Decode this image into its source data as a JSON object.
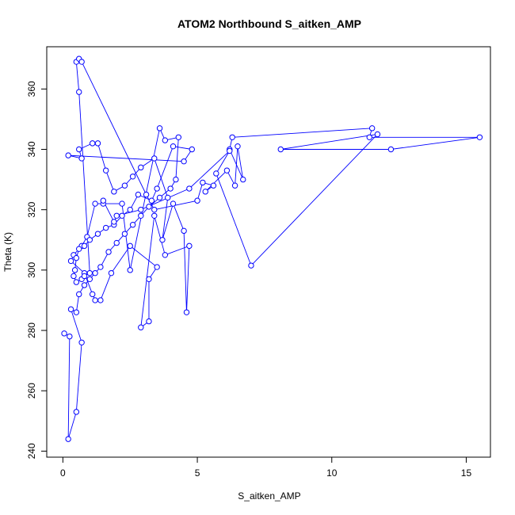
{
  "chart_data": {
    "type": "line",
    "title": "ATOM2 Northbound S_aitken_AMP",
    "xlabel": "S_aitken_AMP",
    "ylabel": "Theta (K)",
    "xlim": [
      -0.6,
      15.9
    ],
    "ylim": [
      238,
      374
    ],
    "xticks": [
      "0",
      "5",
      "10",
      "15"
    ],
    "yticks": [
      "240",
      "260",
      "280",
      "300",
      "320",
      "340",
      "360"
    ],
    "grid": false,
    "legend": "none",
    "series_color": "#0000ff",
    "marker": "open-circle",
    "series": [
      {
        "values": [
          [
            0.05,
            279.0
          ],
          [
            0.25,
            278.0
          ],
          [
            0.2,
            244.0
          ],
          [
            0.5,
            253.0
          ],
          [
            0.7,
            276.0
          ],
          [
            0.3,
            287.0
          ],
          [
            0.5,
            286.0
          ],
          [
            0.6,
            292.0
          ],
          [
            0.8,
            295.0
          ],
          [
            1.0,
            297.0
          ],
          [
            1.2,
            299.0
          ],
          [
            1.4,
            301.0
          ],
          [
            1.7,
            306.0
          ],
          [
            2.0,
            309.0
          ],
          [
            2.3,
            312.0
          ],
          [
            2.6,
            315.0
          ],
          [
            2.9,
            318.0
          ],
          [
            3.2,
            321.0
          ],
          [
            3.6,
            324.0
          ],
          [
            4.0,
            327.0
          ],
          [
            4.2,
            330.0
          ],
          [
            4.3,
            344.0
          ],
          [
            3.8,
            343.0
          ],
          [
            3.6,
            347.0
          ],
          [
            2.5,
            300.0
          ],
          [
            2.2,
            322.0
          ],
          [
            1.5,
            322.0
          ],
          [
            1.2,
            322.0
          ],
          [
            0.9,
            311.0
          ],
          [
            0.7,
            308.0
          ],
          [
            0.4,
            305.0
          ],
          [
            0.3,
            303.0
          ],
          [
            0.8,
            299.0
          ],
          [
            1.1,
            292.0
          ],
          [
            1.2,
            290.0
          ],
          [
            1.4,
            290.0
          ],
          [
            1.8,
            299.0
          ],
          [
            2.5,
            308.0
          ],
          [
            3.5,
            301.0
          ],
          [
            3.2,
            297.0
          ],
          [
            3.2,
            283.0
          ],
          [
            2.9,
            281.0
          ],
          [
            3.4,
            318.0
          ],
          [
            3.8,
            305.0
          ],
          [
            4.7,
            308.0
          ],
          [
            4.6,
            286.0
          ],
          [
            4.5,
            313.0
          ],
          [
            4.1,
            322.0
          ],
          [
            3.7,
            310.0
          ],
          [
            3.9,
            324.0
          ],
          [
            3.4,
            337.0
          ],
          [
            2.9,
            334.0
          ],
          [
            2.6,
            331.0
          ],
          [
            2.3,
            328.0
          ],
          [
            1.9,
            326.0
          ],
          [
            1.6,
            333.0
          ],
          [
            1.3,
            342.0
          ],
          [
            1.1,
            342.0
          ],
          [
            0.6,
            340.0
          ],
          [
            0.7,
            337.0
          ],
          [
            0.2,
            338.0
          ],
          [
            4.5,
            336.0
          ],
          [
            4.8,
            340.0
          ],
          [
            4.1,
            341.0
          ],
          [
            3.5,
            327.0
          ],
          [
            3.3,
            323.0
          ],
          [
            2.8,
            325.0
          ],
          [
            2.5,
            320.0
          ],
          [
            2.2,
            318.0
          ],
          [
            1.9,
            315.0
          ],
          [
            1.6,
            314.0
          ],
          [
            1.3,
            312.0
          ],
          [
            1.0,
            310.0
          ],
          [
            0.8,
            308.0
          ],
          [
            0.6,
            307.0
          ],
          [
            0.5,
            304.0
          ],
          [
            0.45,
            300.0
          ],
          [
            0.4,
            298.0
          ],
          [
            0.5,
            296.0
          ],
          [
            0.7,
            297.0
          ],
          [
            0.8,
            298.0
          ],
          [
            1.0,
            299.0
          ],
          [
            0.6,
            359.0
          ],
          [
            0.5,
            369.0
          ],
          [
            0.6,
            370.0
          ],
          [
            0.7,
            369.0
          ],
          [
            3.1,
            325.0
          ],
          [
            3.4,
            320.0
          ],
          [
            5.0,
            323.0
          ],
          [
            5.2,
            329.0
          ],
          [
            5.6,
            328.0
          ],
          [
            5.3,
            326.0
          ],
          [
            6.1,
            333.0
          ],
          [
            6.4,
            328.0
          ],
          [
            6.5,
            341.0
          ],
          [
            6.7,
            330.0
          ],
          [
            6.2,
            340.0
          ],
          [
            6.3,
            344.0
          ],
          [
            11.5,
            347.0
          ],
          [
            11.4,
            344.0
          ],
          [
            15.5,
            344.0
          ],
          [
            12.2,
            340.0
          ],
          [
            8.1,
            340.0
          ],
          [
            11.7,
            345.0
          ],
          [
            7.0,
            301.5
          ],
          [
            5.7,
            332.0
          ],
          [
            6.2,
            339.5
          ],
          [
            4.7,
            327.0
          ],
          [
            2.9,
            320.0
          ],
          [
            2.0,
            318.0
          ],
          [
            1.9,
            316.0
          ],
          [
            1.5,
            323.0
          ]
        ]
      }
    ]
  }
}
